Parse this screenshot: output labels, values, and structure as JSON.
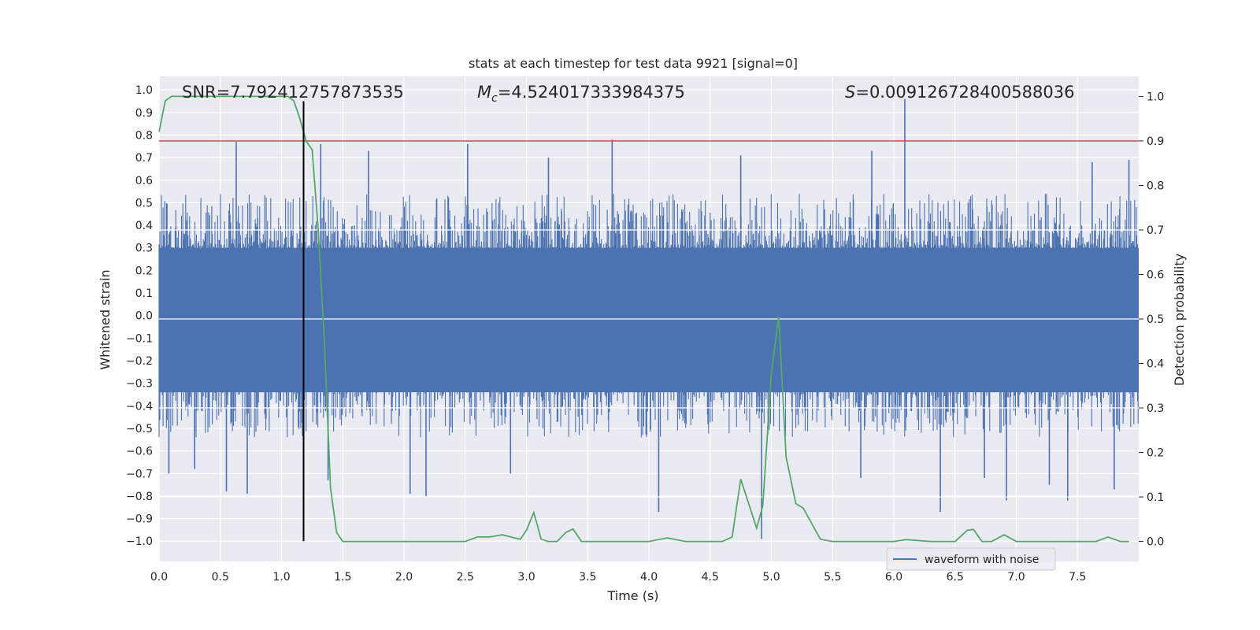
{
  "chart_data": {
    "type": "line",
    "title": "stats at each timestep for test data 9921 [signal=0]",
    "xlabel": "Time (s)",
    "ylabel": "Whitened strain",
    "y2label": "Detection probability",
    "xlim": [
      0.0,
      8.0
    ],
    "ylim": [
      -1.09,
      1.06
    ],
    "y2lim": [
      -0.045,
      1.045
    ],
    "xticks": [
      "0.0",
      "0.5",
      "1.0",
      "1.5",
      "2.0",
      "2.5",
      "3.0",
      "3.5",
      "4.0",
      "4.5",
      "5.0",
      "5.5",
      "6.0",
      "6.5",
      "7.0",
      "7.5"
    ],
    "yticks": [
      "1.0",
      "0.9",
      "0.8",
      "0.7",
      "0.6",
      "0.5",
      "0.4",
      "0.3",
      "0.2",
      "0.1",
      "0.0",
      "-0.1",
      "-0.2",
      "-0.3",
      "-0.4",
      "-0.5",
      "-0.6",
      "-0.7",
      "-0.8",
      "-0.9",
      "-1.0"
    ],
    "y2ticks": [
      "1.0",
      "0.9",
      "0.8",
      "0.7",
      "0.6",
      "0.5",
      "0.4",
      "0.3",
      "0.2",
      "0.1",
      "0.0"
    ],
    "grid": true,
    "legend": {
      "position": "lower-right",
      "entries": [
        "waveform with noise"
      ]
    },
    "annotations": {
      "snr": "SNR=7.792412757873535",
      "mc_symbol": "M",
      "mc_sub": "c",
      "mc_value": "=4.524017333984375",
      "s_symbol": "S",
      "s_value": "=0.009126728400588036"
    },
    "threshold": {
      "y2": 0.9,
      "color": "#c44e52"
    },
    "marker_line": {
      "x": 1.18,
      "y_from": -1.0,
      "y_to": 0.95,
      "color": "#000000"
    },
    "waveform": {
      "name": "waveform with noise",
      "color": "#4c72b0",
      "x_range": [
        0.0,
        8.0
      ],
      "envelope_upper": 0.4,
      "envelope_lower": -0.4,
      "spikes": [
        {
          "x": 0.63,
          "y": 0.77
        },
        {
          "x": 0.55,
          "y": -0.78
        },
        {
          "x": 0.72,
          "y": -0.79
        },
        {
          "x": 1.32,
          "y": 0.76
        },
        {
          "x": 1.38,
          "y": -0.73
        },
        {
          "x": 1.71,
          "y": 0.73
        },
        {
          "x": 2.05,
          "y": -0.79
        },
        {
          "x": 2.18,
          "y": -0.8
        },
        {
          "x": 2.52,
          "y": 0.76
        },
        {
          "x": 3.7,
          "y": 0.78
        },
        {
          "x": 3.18,
          "y": 0.7
        },
        {
          "x": 4.08,
          "y": -0.87
        },
        {
          "x": 4.92,
          "y": -0.99
        },
        {
          "x": 6.09,
          "y": 0.96
        },
        {
          "x": 6.38,
          "y": -0.87
        },
        {
          "x": 7.27,
          "y": -0.75
        },
        {
          "x": 7.62,
          "y": 0.68
        },
        {
          "x": 7.92,
          "y": 0.69
        },
        {
          "x": 7.42,
          "y": -0.82
        },
        {
          "x": 0.08,
          "y": -0.7
        },
        {
          "x": 0.29,
          "y": -0.68
        },
        {
          "x": 2.87,
          "y": -0.7
        },
        {
          "x": 5.73,
          "y": -0.72
        },
        {
          "x": 6.74,
          "y": -0.72
        },
        {
          "x": 6.92,
          "y": -0.82
        },
        {
          "x": 7.8,
          "y": -0.77
        },
        {
          "x": 4.75,
          "y": 0.71
        },
        {
          "x": 5.82,
          "y": 0.73
        }
      ]
    },
    "probability": {
      "color": "#55a868",
      "x": [
        0.0,
        0.05,
        0.1,
        0.2,
        0.3,
        0.4,
        0.5,
        0.6,
        0.7,
        0.8,
        0.9,
        1.0,
        1.05,
        1.1,
        1.15,
        1.2,
        1.25,
        1.3,
        1.35,
        1.4,
        1.45,
        1.5,
        1.6,
        1.8,
        2.0,
        2.2,
        2.4,
        2.5,
        2.6,
        2.7,
        2.8,
        2.95,
        3.0,
        3.06,
        3.12,
        3.18,
        3.25,
        3.32,
        3.38,
        3.45,
        3.6,
        3.8,
        4.0,
        4.15,
        4.3,
        4.5,
        4.6,
        4.68,
        4.75,
        4.88,
        4.93,
        5.0,
        5.06,
        5.12,
        5.2,
        5.26,
        5.32,
        5.4,
        5.5,
        5.8,
        6.0,
        6.1,
        6.3,
        6.5,
        6.6,
        6.65,
        6.72,
        6.8,
        6.9,
        7.0,
        7.1,
        7.3,
        7.5,
        7.65,
        7.75,
        7.85,
        7.92
      ],
      "y": [
        0.92,
        0.99,
        1.0,
        1.0,
        1.0,
        1.0,
        1.0,
        1.0,
        1.0,
        1.0,
        1.0,
        1.0,
        1.0,
        0.99,
        0.95,
        0.9,
        0.88,
        0.7,
        0.45,
        0.12,
        0.02,
        0.0,
        0.0,
        0.0,
        0.0,
        0.0,
        0.0,
        0.0,
        0.01,
        0.01,
        0.015,
        0.005,
        0.025,
        0.065,
        0.005,
        0.0,
        0.0,
        0.02,
        0.028,
        0.0,
        0.0,
        0.0,
        0.0,
        0.008,
        0.0,
        0.0,
        0.0,
        0.01,
        0.14,
        0.03,
        0.08,
        0.38,
        0.505,
        0.19,
        0.085,
        0.075,
        0.045,
        0.005,
        0.0,
        0.0,
        0.0,
        0.004,
        0.0,
        0.0,
        0.025,
        0.027,
        0.0,
        0.0,
        0.015,
        0.0,
        0.0,
        0.0,
        0.0,
        0.0,
        0.01,
        0.0,
        0.0
      ]
    }
  }
}
